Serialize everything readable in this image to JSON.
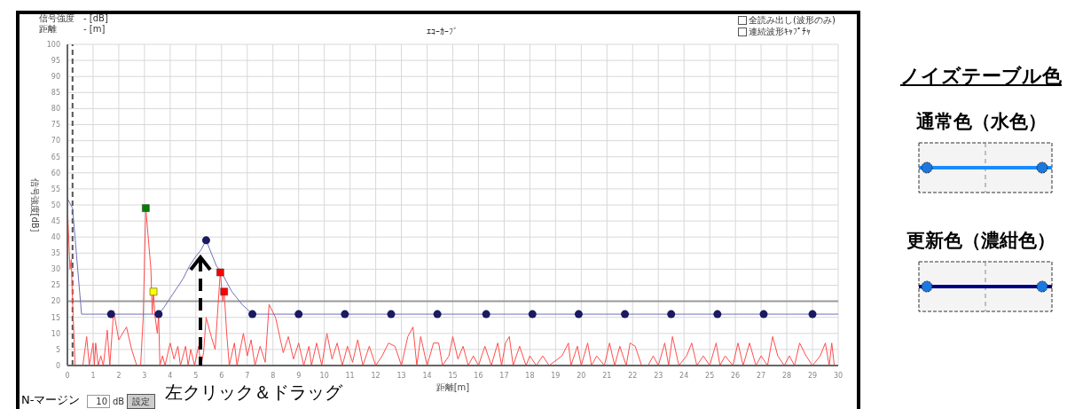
{
  "chart_data": {
    "type": "line",
    "title": "ｴｺｰｶｰﾌﾞ",
    "xlabel": "距離[m]",
    "ylabel": "信号強度[dB]",
    "xlim": [
      0,
      30
    ],
    "xticks": [
      0,
      1,
      2,
      3,
      4,
      5,
      6,
      7,
      8,
      9,
      10,
      11,
      12,
      13,
      14,
      15,
      16,
      17,
      18,
      19,
      20,
      21,
      22,
      23,
      24,
      25,
      26,
      27,
      28,
      29,
      30
    ],
    "ylim": [
      0,
      100
    ],
    "yticks": [
      0,
      5,
      10,
      15,
      20,
      25,
      30,
      35,
      40,
      45,
      50,
      55,
      60,
      65,
      70,
      75,
      80,
      85,
      90,
      95,
      100
    ],
    "grid": true,
    "legend": false,
    "series": [
      {
        "color": "#ff4d4d",
        "marker": "none",
        "x": [
          0,
          0.1,
          0.15,
          0.2,
          0.3,
          0.6,
          0.75,
          0.85,
          1.0,
          1.05,
          1.1,
          1.2,
          1.3,
          1.4,
          1.55,
          1.65,
          1.8,
          2.0,
          2.3,
          2.5,
          2.7,
          2.85,
          2.95,
          3.05,
          3.25,
          3.3,
          3.35,
          3.4,
          3.5,
          3.55,
          3.6,
          3.7,
          3.8,
          4.0,
          4.15,
          4.3,
          4.4,
          4.6,
          4.7,
          4.8,
          4.95,
          5.1,
          5.2,
          5.3,
          5.4,
          5.6,
          5.75,
          5.95,
          6.05,
          6.1,
          6.2,
          6.3,
          6.5,
          6.6,
          6.85,
          7.0,
          7.15,
          7.3,
          7.5,
          7.7,
          7.85,
          8.1,
          8.4,
          8.6,
          8.8,
          9.0,
          9.2,
          9.4,
          9.5,
          9.7,
          9.9,
          10.1,
          10.3,
          10.5,
          10.7,
          10.9,
          11.1,
          11.3,
          11.5,
          11.75,
          12.0,
          12.25,
          12.5,
          12.75,
          13.0,
          13.25,
          13.45,
          13.6,
          13.75,
          14.0,
          14.25,
          14.45,
          14.6,
          14.85,
          15.0,
          15.2,
          15.4,
          15.6,
          15.8,
          16.0,
          16.25,
          16.5,
          16.75,
          16.9,
          17.05,
          17.2,
          17.35,
          17.6,
          17.85,
          18.0,
          18.25,
          18.5,
          18.75,
          19.25,
          19.5,
          19.6,
          19.85,
          20.0,
          20.25,
          20.4,
          20.6,
          20.9,
          21.1,
          21.3,
          21.5,
          21.75,
          21.9,
          22.1,
          22.35,
          22.6,
          22.8,
          23.0,
          23.25,
          23.4,
          23.55,
          23.8,
          24.1,
          24.3,
          24.5,
          24.75,
          25.0,
          25.25,
          25.4,
          25.6,
          25.9,
          26.1,
          26.3,
          26.55,
          26.8,
          27.0,
          27.25,
          27.45,
          27.65,
          27.9,
          28.1,
          28.3,
          28.5,
          28.75,
          29.0,
          29.3,
          29.5,
          29.65,
          29.75,
          29.85,
          30.0
        ],
        "values": [
          50,
          30,
          33,
          20,
          0,
          0,
          9,
          0,
          7,
          0,
          7,
          0,
          3,
          0,
          11,
          0,
          17,
          8,
          12,
          5,
          0,
          0,
          15,
          49,
          30,
          16,
          23,
          16,
          10,
          16,
          0,
          3,
          0,
          7,
          2,
          6,
          0,
          6,
          0,
          5,
          0,
          6,
          0,
          4,
          15,
          9,
          5,
          29,
          20,
          23,
          10,
          0,
          7,
          0,
          10,
          3,
          8,
          0,
          6,
          1,
          19,
          15,
          4,
          9,
          2,
          7,
          0,
          6,
          0,
          7,
          0,
          10,
          2,
          7,
          0,
          6,
          1,
          8,
          0,
          6,
          0,
          3,
          7,
          6,
          0,
          9,
          12,
          0,
          9,
          0,
          7,
          7,
          0,
          3,
          9,
          2,
          6,
          0,
          3,
          0,
          6,
          0,
          7,
          0,
          7,
          9,
          0,
          6,
          0,
          3,
          0,
          3,
          0,
          3,
          7,
          0,
          6,
          0,
          7,
          0,
          3,
          0,
          7,
          0,
          6,
          0,
          7,
          6,
          0,
          0,
          3,
          0,
          7,
          0,
          9,
          0,
          3,
          7,
          0,
          3,
          0,
          7,
          0,
          3,
          0,
          7,
          0,
          7,
          0,
          3,
          0,
          9,
          3,
          0,
          3,
          0,
          7,
          3,
          0,
          3,
          7,
          0,
          7,
          0,
          0
        ]
      },
      {
        "color": "#7070b8",
        "marker": "none",
        "x": [
          0,
          0.2,
          0.55,
          1.7,
          3.55,
          3.75,
          4.0,
          4.25,
          4.5,
          4.75,
          5.0,
          5.2,
          5.4,
          5.6,
          5.8,
          6.0,
          6.2,
          6.4,
          6.6,
          6.8,
          7.0,
          7.2,
          30
        ],
        "values": [
          52,
          49,
          16,
          16,
          16,
          18,
          21,
          24,
          27,
          31,
          34,
          36,
          39,
          35,
          31,
          29,
          26,
          23,
          21,
          19,
          17.5,
          16,
          16
        ]
      },
      {
        "type": "scatter",
        "color": "#1a1a60",
        "marker": "circle",
        "x": [
          1.7,
          3.55,
          5.4,
          7.2,
          9.0,
          10.8,
          12.6,
          14.4,
          16.3,
          18.1,
          19.9,
          21.7,
          23.5,
          25.3,
          27.1,
          29.0
        ],
        "values": [
          16,
          16,
          39,
          16,
          16,
          16,
          16,
          16,
          16,
          16,
          16,
          16,
          16,
          16,
          16,
          16
        ]
      },
      {
        "type": "scatter",
        "marker": "square",
        "x": [
          3.05,
          3.35,
          5.95,
          6.1
        ],
        "values": [
          49,
          23,
          29,
          23
        ],
        "colors": [
          "#008000",
          "#ffff00",
          "#ff0000",
          "#ff0000"
        ]
      }
    ],
    "ref_lines": [
      {
        "axis": "y",
        "value": 20,
        "color": "#999999"
      },
      {
        "axis": "x",
        "value": 0.2,
        "color": "#555555",
        "line_style": "dashed"
      }
    ],
    "annotations": [
      "信号強度",
      "- [dB]",
      "距離",
      "- [m]",
      "全読み出し(波形のみ)",
      "連続波形ｷｬﾌﾟﾁｬ",
      "左クリック＆ドラッグ",
      "N-マージン",
      "10",
      "dB",
      "設定",
      "ノイズテーブル色",
      "通常色（水色）",
      "更新色（濃紺色）"
    ]
  }
}
